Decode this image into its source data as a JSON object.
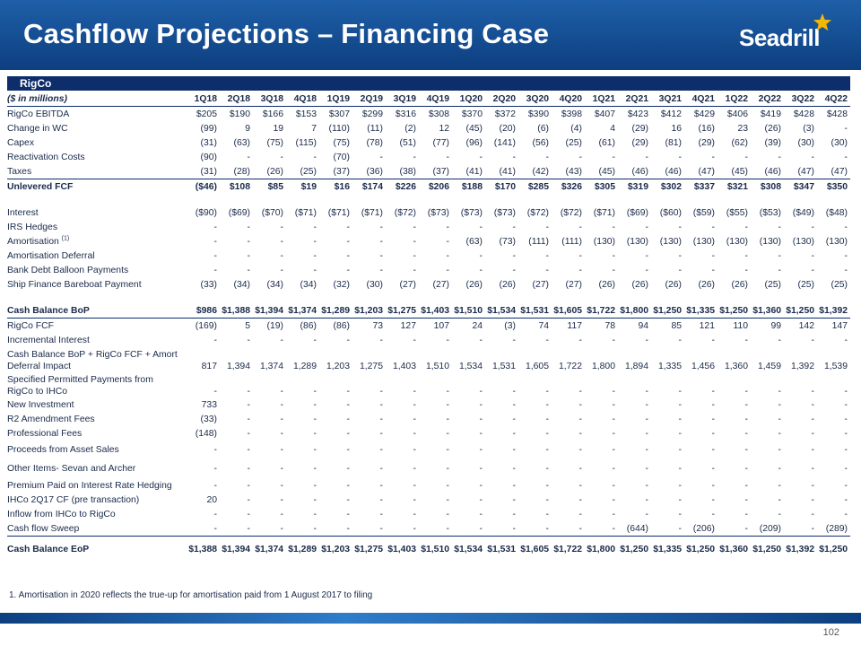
{
  "header": {
    "title": "Cashflow Projections – Financing Case",
    "logo_text": "Seadrill"
  },
  "section_label": "RigCo",
  "units_label": "($ in millions)",
  "periods": [
    "1Q18",
    "2Q18",
    "3Q18",
    "4Q18",
    "1Q19",
    "2Q19",
    "3Q19",
    "4Q19",
    "1Q20",
    "2Q20",
    "3Q20",
    "4Q20",
    "1Q21",
    "2Q21",
    "3Q21",
    "4Q21",
    "1Q22",
    "2Q22",
    "3Q22",
    "4Q22"
  ],
  "rows": [
    {
      "label": "RigCo EBITDA",
      "values": [
        "$205",
        "$190",
        "$166",
        "$153",
        "$307",
        "$299",
        "$316",
        "$308",
        "$370",
        "$372",
        "$390",
        "$398",
        "$407",
        "$423",
        "$412",
        "$429",
        "$406",
        "$419",
        "$428",
        "$428"
      ]
    },
    {
      "label": "Change in WC",
      "values": [
        "(99)",
        "9",
        "19",
        "7",
        "(110)",
        "(11)",
        "(2)",
        "12",
        "(45)",
        "(20)",
        "(6)",
        "(4)",
        "4",
        "(29)",
        "16",
        "(16)",
        "23",
        "(26)",
        "(3)",
        "-"
      ]
    },
    {
      "label": "Capex",
      "values": [
        "(31)",
        "(63)",
        "(75)",
        "(115)",
        "(75)",
        "(78)",
        "(51)",
        "(77)",
        "(96)",
        "(141)",
        "(56)",
        "(25)",
        "(61)",
        "(29)",
        "(81)",
        "(29)",
        "(62)",
        "(39)",
        "(30)",
        "(30)"
      ]
    },
    {
      "label": "Reactivation Costs",
      "values": [
        "(90)",
        "-",
        "-",
        "-",
        "(70)",
        "-",
        "-",
        "-",
        "-",
        "-",
        "-",
        "-",
        "-",
        "-",
        "-",
        "-",
        "-",
        "-",
        "-",
        "-"
      ]
    },
    {
      "label": "Taxes",
      "values": [
        "(31)",
        "(28)",
        "(26)",
        "(25)",
        "(37)",
        "(36)",
        "(38)",
        "(37)",
        "(41)",
        "(41)",
        "(42)",
        "(43)",
        "(45)",
        "(46)",
        "(46)",
        "(47)",
        "(45)",
        "(46)",
        "(47)",
        "(47)"
      ]
    },
    {
      "label": "Unlevered FCF",
      "values": [
        "($46)",
        "$108",
        "$85",
        "$19",
        "$16",
        "$174",
        "$226",
        "$206",
        "$188",
        "$170",
        "$285",
        "$326",
        "$305",
        "$319",
        "$302",
        "$337",
        "$321",
        "$308",
        "$347",
        "$350"
      ]
    },
    {
      "label": "Interest",
      "values": [
        "($90)",
        "($69)",
        "($70)",
        "($71)",
        "($71)",
        "($71)",
        "($72)",
        "($73)",
        "($73)",
        "($73)",
        "($72)",
        "($72)",
        "($71)",
        "($69)",
        "($60)",
        "($59)",
        "($55)",
        "($53)",
        "($49)",
        "($48)"
      ]
    },
    {
      "label": "IRS Hedges",
      "values": [
        "-",
        "-",
        "-",
        "-",
        "-",
        "-",
        "-",
        "-",
        "-",
        "-",
        "-",
        "-",
        "-",
        "-",
        "-",
        "-",
        "-",
        "-",
        "-",
        "-"
      ]
    },
    {
      "label": "Amortisation",
      "sup": "(1)",
      "values": [
        "-",
        "-",
        "-",
        "-",
        "-",
        "-",
        "-",
        "-",
        "(63)",
        "(73)",
        "(111)",
        "(111)",
        "(130)",
        "(130)",
        "(130)",
        "(130)",
        "(130)",
        "(130)",
        "(130)",
        "(130)"
      ]
    },
    {
      "label": "Amortisation Deferral",
      "values": [
        "-",
        "-",
        "-",
        "-",
        "-",
        "-",
        "-",
        "-",
        "-",
        "-",
        "-",
        "-",
        "-",
        "-",
        "-",
        "-",
        "-",
        "-",
        "-",
        "-"
      ]
    },
    {
      "label": "Bank Debt Balloon Payments",
      "values": [
        "-",
        "-",
        "-",
        "-",
        "-",
        "-",
        "-",
        "-",
        "-",
        "-",
        "-",
        "-",
        "-",
        "-",
        "-",
        "-",
        "-",
        "-",
        "-",
        "-"
      ]
    },
    {
      "label": "Ship Finance Bareboat Payment",
      "values": [
        "(33)",
        "(34)",
        "(34)",
        "(34)",
        "(32)",
        "(30)",
        "(27)",
        "(27)",
        "(26)",
        "(26)",
        "(27)",
        "(27)",
        "(26)",
        "(26)",
        "(26)",
        "(26)",
        "(26)",
        "(25)",
        "(25)",
        "(25)"
      ]
    },
    {
      "label": "Cash Balance BoP",
      "values": [
        "$986",
        "$1,388",
        "$1,394",
        "$1,374",
        "$1,289",
        "$1,203",
        "$1,275",
        "$1,403",
        "$1,510",
        "$1,534",
        "$1,531",
        "$1,605",
        "$1,722",
        "$1,800",
        "$1,250",
        "$1,335",
        "$1,250",
        "$1,360",
        "$1,250",
        "$1,392"
      ]
    },
    {
      "label": "RigCo FCF",
      "values": [
        "(169)",
        "5",
        "(19)",
        "(86)",
        "(86)",
        "73",
        "127",
        "107",
        "24",
        "(3)",
        "74",
        "117",
        "78",
        "94",
        "85",
        "121",
        "110",
        "99",
        "142",
        "147"
      ]
    },
    {
      "label": "Incremental Interest",
      "values": [
        "-",
        "-",
        "-",
        "-",
        "-",
        "-",
        "-",
        "-",
        "-",
        "-",
        "-",
        "-",
        "-",
        "-",
        "-",
        "-",
        "-",
        "-",
        "-",
        "-"
      ]
    },
    {
      "label": "Cash Balance BoP + RigCo FCF + Amort",
      "label2": "Deferral Impact",
      "values": [
        "817",
        "1,394",
        "1,374",
        "1,289",
        "1,203",
        "1,275",
        "1,403",
        "1,510",
        "1,534",
        "1,531",
        "1,605",
        "1,722",
        "1,800",
        "1,894",
        "1,335",
        "1,456",
        "1,360",
        "1,459",
        "1,392",
        "1,539"
      ]
    },
    {
      "label": "Specified Permitted Payments from",
      "label2": "RigCo to IHCo",
      "values": [
        "-",
        "-",
        "-",
        "-",
        "-",
        "-",
        "-",
        "-",
        "-",
        "-",
        "-",
        "-",
        "-",
        "-",
        "-",
        "-",
        "-",
        "-",
        "-",
        "-"
      ]
    },
    {
      "label": "New Investment",
      "values": [
        "733",
        "-",
        "-",
        "-",
        "-",
        "-",
        "-",
        "-",
        "-",
        "-",
        "-",
        "-",
        "-",
        "-",
        "-",
        "-",
        "-",
        "-",
        "-",
        "-"
      ]
    },
    {
      "label": "R2 Amendment Fees",
      "values": [
        "(33)",
        "-",
        "-",
        "-",
        "-",
        "-",
        "-",
        "-",
        "-",
        "-",
        "-",
        "-",
        "-",
        "-",
        "-",
        "-",
        "-",
        "-",
        "-",
        "-"
      ]
    },
    {
      "label": "Professional Fees",
      "values": [
        "(148)",
        "-",
        "-",
        "-",
        "-",
        "-",
        "-",
        "-",
        "-",
        "-",
        "-",
        "-",
        "-",
        "-",
        "-",
        "-",
        "-",
        "-",
        "-",
        "-"
      ]
    },
    {
      "label": "Proceeds from Asset Sales",
      "values": [
        "-",
        "-",
        "-",
        "-",
        "-",
        "-",
        "-",
        "-",
        "-",
        "-",
        "-",
        "-",
        "-",
        "-",
        "-",
        "-",
        "-",
        "-",
        "-",
        "-"
      ]
    },
    {
      "label": "Other Items- Sevan and Archer",
      "values": [
        "-",
        "-",
        "-",
        "-",
        "-",
        "-",
        "-",
        "-",
        "-",
        "-",
        "-",
        "-",
        "-",
        "-",
        "-",
        "-",
        "-",
        "-",
        "-",
        "-"
      ]
    },
    {
      "label": "Premium Paid on Interest Rate Hedging",
      "values": [
        "-",
        "-",
        "-",
        "-",
        "-",
        "-",
        "-",
        "-",
        "-",
        "-",
        "-",
        "-",
        "-",
        "-",
        "-",
        "-",
        "-",
        "-",
        "-",
        "-"
      ]
    },
    {
      "label": "IHCo 2Q17 CF (pre transaction)",
      "values": [
        "20",
        "-",
        "-",
        "-",
        "-",
        "-",
        "-",
        "-",
        "-",
        "-",
        "-",
        "-",
        "-",
        "-",
        "-",
        "-",
        "-",
        "-",
        "-",
        "-"
      ]
    },
    {
      "label": "Inflow from IHCo to RigCo",
      "values": [
        "-",
        "-",
        "-",
        "-",
        "-",
        "-",
        "-",
        "-",
        "-",
        "-",
        "-",
        "-",
        "-",
        "-",
        "-",
        "-",
        "-",
        "-",
        "-",
        "-"
      ]
    },
    {
      "label": "Cash flow Sweep",
      "values": [
        "-",
        "-",
        "-",
        "-",
        "-",
        "-",
        "-",
        "-",
        "-",
        "-",
        "-",
        "-",
        "-",
        "(644)",
        "-",
        "(206)",
        "-",
        "(209)",
        "-",
        "(289)"
      ]
    },
    {
      "label": "Cash Balance EoP",
      "values": [
        "$1,388",
        "$1,394",
        "$1,374",
        "$1,289",
        "$1,203",
        "$1,275",
        "$1,403",
        "$1,510",
        "$1,534",
        "$1,531",
        "$1,605",
        "$1,722",
        "$1,800",
        "$1,250",
        "$1,335",
        "$1,250",
        "$1,360",
        "$1,250",
        "$1,392",
        "$1,250"
      ]
    }
  ],
  "footnote": "1. Amortisation in 2020 reflects the true-up for amortisation paid from 1 August 2017 to filing",
  "page_number": "102"
}
